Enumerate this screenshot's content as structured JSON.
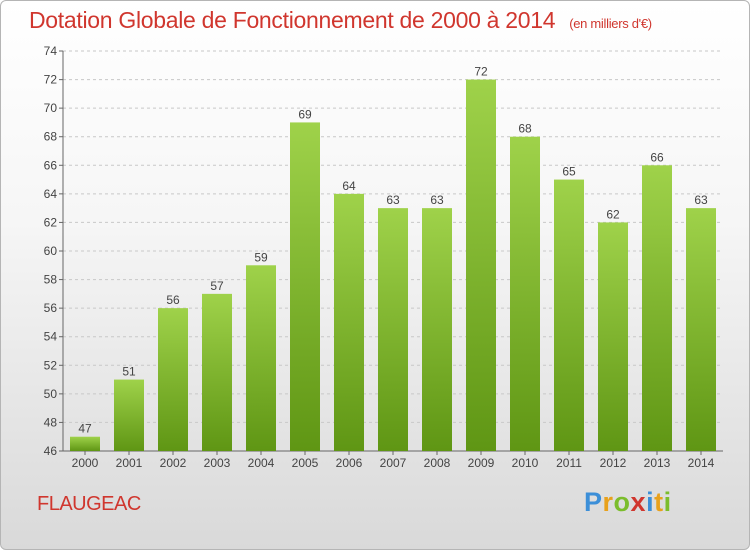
{
  "header": {
    "title": "Dotation Globale de Fonctionnement de 2000 à 2014",
    "unit": "(en milliers d'€)"
  },
  "commune": "FLAUGEAC",
  "logo": {
    "text": "Proxiti",
    "letters": [
      {
        "ch": "P",
        "color": "#3c8fd8"
      },
      {
        "ch": "r",
        "color": "#e8a11c"
      },
      {
        "ch": "o",
        "color": "#7bbd2c"
      },
      {
        "ch": "x",
        "color": "#d0362e"
      },
      {
        "ch": "i",
        "color": "#3c8fd8"
      },
      {
        "ch": "t",
        "color": "#e8a11c"
      },
      {
        "ch": "i",
        "color": "#7bbd2c"
      }
    ]
  },
  "chart_data": {
    "type": "bar",
    "categories": [
      "2000",
      "2001",
      "2002",
      "2003",
      "2004",
      "2005",
      "2006",
      "2007",
      "2008",
      "2009",
      "2010",
      "2011",
      "2012",
      "2013",
      "2014"
    ],
    "values": [
      47,
      51,
      56,
      57,
      59,
      69,
      64,
      63,
      63,
      72,
      68,
      65,
      62,
      66,
      63
    ],
    "ylim": [
      46,
      74
    ],
    "yticks": [
      46,
      48,
      50,
      52,
      54,
      56,
      58,
      60,
      62,
      64,
      66,
      68,
      70,
      72,
      74
    ],
    "grid": "horizontal dashed",
    "bar_color_top": "#9fd24a",
    "bar_color_bottom": "#5f9614",
    "title_color": "#d0362e"
  }
}
